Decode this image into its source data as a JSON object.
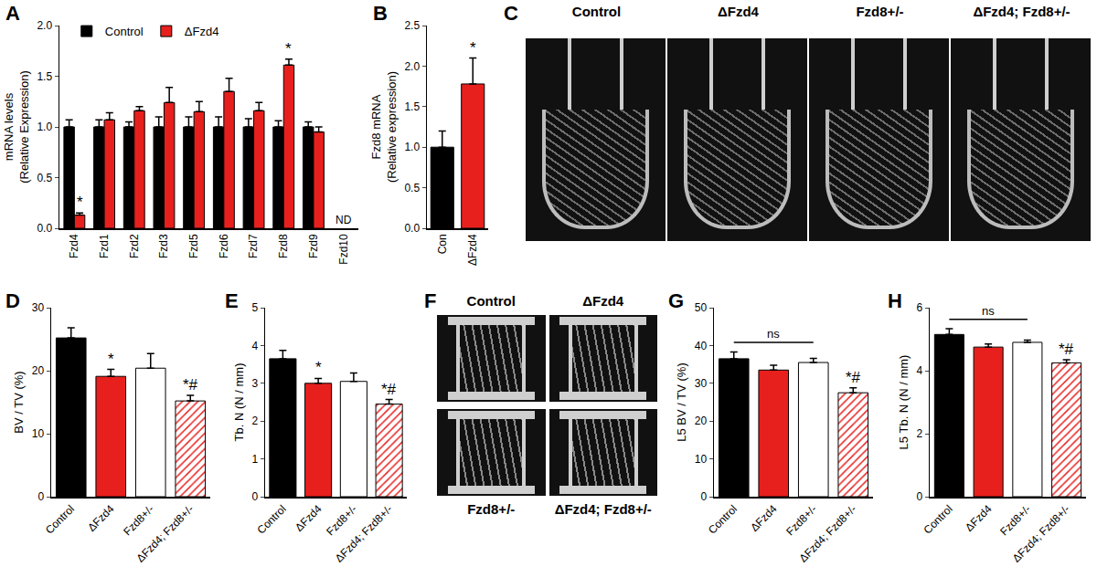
{
  "chart_data": [
    {
      "panel": "A",
      "type": "bar",
      "categories": [
        "Fzd4",
        "Fzd1",
        "Fzd2",
        "Fzd3",
        "Fzd5",
        "Fzd6",
        "Fzd7",
        "Fzd8",
        "Fzd9",
        "Fzd10"
      ],
      "y_label": "mRNA levels\n(Relative Expression)",
      "ylim": [
        0,
        2
      ],
      "yticks": [
        {
          "value": 0,
          "label": "0.0"
        },
        {
          "value": 0.5,
          "label": "0.5"
        },
        {
          "value": 1,
          "label": "1.0"
        },
        {
          "value": 1.5,
          "label": "1.5"
        },
        {
          "value": 2,
          "label": "2.0"
        }
      ],
      "legend": "upper left",
      "series": [
        {
          "name": "Control",
          "color": "#000000",
          "values": [
            1.0,
            1.0,
            1.0,
            1.0,
            1.0,
            1.0,
            1.0,
            1.0,
            1.0,
            null
          ],
          "error": [
            0.07,
            0.07,
            0.05,
            0.1,
            0.1,
            0.1,
            0.08,
            0.06,
            0.05,
            null
          ]
        },
        {
          "name": "ΔFzd4",
          "color": "#e8201d",
          "values": [
            0.13,
            1.07,
            1.16,
            1.24,
            1.15,
            1.35,
            1.16,
            1.61,
            0.95,
            null
          ],
          "error": [
            0.02,
            0.07,
            0.04,
            0.15,
            0.1,
            0.13,
            0.08,
            0.06,
            0.05,
            null
          ]
        }
      ],
      "annotations": [
        {
          "x": "Fzd4",
          "series": "ΔFzd4",
          "text": "*"
        },
        {
          "x": "Fzd8",
          "series": "ΔFzd4",
          "text": "*"
        },
        {
          "x": "Fzd10",
          "text": "ND"
        }
      ]
    },
    {
      "panel": "B",
      "type": "bar",
      "categories": [
        "Con",
        "ΔFzd4"
      ],
      "y_label": "Fzd8 mRNA\n(Relative expression)",
      "ylim": [
        0,
        2.5
      ],
      "yticks": [
        {
          "value": 0,
          "label": "0.0"
        },
        {
          "value": 0.5,
          "label": "0.5"
        },
        {
          "value": 1,
          "label": "1.0"
        },
        {
          "value": 1.5,
          "label": "1.5"
        },
        {
          "value": 2,
          "label": "2.0"
        },
        {
          "value": 2.5,
          "label": "2.5"
        }
      ],
      "values": [
        1.0,
        1.78
      ],
      "error": [
        0.2,
        0.32
      ],
      "colors": [
        "#000000",
        "#e8201d"
      ],
      "annotations": [
        {
          "x": "ΔFzd4",
          "text": "*"
        }
      ]
    },
    {
      "panel": "D",
      "type": "bar",
      "categories": [
        "Control",
        "ΔFzd4",
        "Fzd8+/-",
        "ΔFzd4; Fzd8+/-"
      ],
      "y_label": "BV / TV (%)",
      "ylim": [
        0,
        30
      ],
      "yticks": [
        0,
        10,
        20,
        30
      ],
      "values": [
        25.2,
        19.1,
        20.4,
        15.2
      ],
      "error": [
        1.6,
        1.1,
        2.3,
        0.9
      ],
      "colors": [
        "#000000",
        "#e8201d",
        "#ffffff",
        "#e8201d"
      ],
      "annotations": [
        {
          "x": "ΔFzd4",
          "text": "*"
        },
        {
          "x": "ΔFzd4; Fzd8+/-",
          "text": "*#"
        }
      ]
    },
    {
      "panel": "E",
      "type": "bar",
      "categories": [
        "Control",
        "ΔFzd4",
        "Fzd8+/-",
        "ΔFzd4; Fzd8+/-"
      ],
      "y_label": "Tb. N (N / mm)",
      "ylim": [
        0,
        5
      ],
      "yticks": [
        0,
        1,
        2,
        3,
        4,
        5
      ],
      "values": [
        3.65,
        3.0,
        3.05,
        2.45
      ],
      "error": [
        0.22,
        0.13,
        0.22,
        0.12
      ],
      "colors": [
        "#000000",
        "#e8201d",
        "#ffffff",
        "#e8201d"
      ],
      "annotations": [
        {
          "x": "ΔFzd4",
          "text": "*"
        },
        {
          "x": "ΔFzd4; Fzd8+/-",
          "text": "*#"
        }
      ]
    },
    {
      "panel": "G",
      "type": "bar",
      "categories": [
        "Control",
        "ΔFzd4",
        "Fzd8+/-",
        "ΔFzd4; Fzd8+/-"
      ],
      "y_label": "L5 BV / TV (%)",
      "ylim": [
        0,
        50
      ],
      "yticks": [
        0,
        10,
        20,
        30,
        40,
        50
      ],
      "values": [
        36.5,
        33.5,
        35.5,
        27.5
      ],
      "error": [
        1.8,
        1.3,
        1.1,
        1.3
      ],
      "colors": [
        "#000000",
        "#e8201d",
        "#ffffff",
        "#e8201d"
      ],
      "annotations": [
        {
          "x": "ΔFzd4; Fzd8+/-",
          "text": "*#"
        }
      ],
      "brackets": [
        {
          "from": "Control",
          "to": "Fzd8+/-",
          "text": "ns"
        }
      ]
    },
    {
      "panel": "H",
      "type": "bar",
      "categories": [
        "Control",
        "ΔFzd4",
        "Fzd8+/-",
        "ΔFzd4; Fzd8+/-"
      ],
      "y_label": "L5 Tb. N (N / mm)",
      "ylim": [
        0,
        6
      ],
      "yticks": [
        0,
        2,
        4,
        6
      ],
      "values": [
        5.15,
        4.75,
        4.9,
        4.25
      ],
      "error": [
        0.18,
        0.1,
        0.07,
        0.1
      ],
      "colors": [
        "#000000",
        "#e8201d",
        "#ffffff",
        "#e8201d"
      ],
      "annotations": [
        {
          "x": "ΔFzd4; Fzd8+/-",
          "text": "*#"
        }
      ],
      "brackets": [
        {
          "from": "Control",
          "to": "Fzd8+/-",
          "text": "ns"
        }
      ]
    }
  ],
  "images": [
    {
      "panel": "C",
      "labels": [
        "Control",
        "ΔFzd4",
        "Fzd8+/-",
        "ΔFzd4; Fzd8+/-"
      ]
    },
    {
      "panel": "F",
      "labels": [
        "Control",
        "ΔFzd4",
        "Fzd8+/-",
        "ΔFzd4; Fzd8+/-"
      ]
    }
  ]
}
